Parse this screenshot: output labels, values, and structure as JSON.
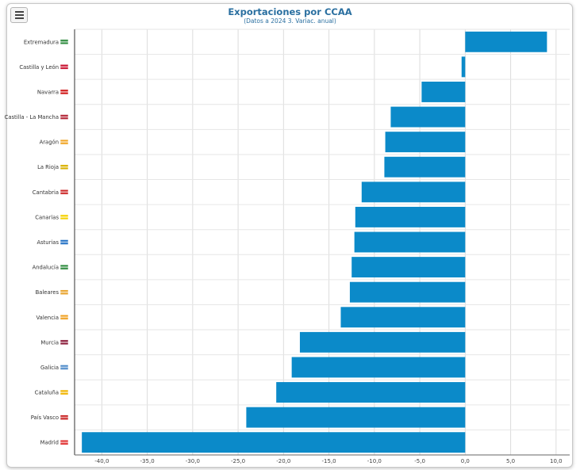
{
  "menu": {
    "icon": "hamburger-icon"
  },
  "chart_data": {
    "type": "bar",
    "orientation": "horizontal",
    "title": "Exportaciones por CCAA",
    "subtitle": "(Datos a 2024 3. Variac. anual)",
    "categories": [
      "Extremadura",
      "Castilla y León",
      "Navarra",
      "Castilla - La Mancha",
      "Aragón",
      "La Rioja",
      "Cantabria",
      "Canarias",
      "Asturias",
      "Andalucía",
      "Baleares",
      "Valencia",
      "Murcia",
      "Galicia",
      "Cataluña",
      "País Vasco",
      "Madrid"
    ],
    "values": [
      9.0,
      -0.4,
      -4.8,
      -8.2,
      -8.8,
      -8.9,
      -11.4,
      -12.1,
      -12.2,
      -12.5,
      -12.7,
      -13.7,
      -18.2,
      -19.1,
      -20.8,
      -24.1,
      -42.2
    ],
    "xlim": [
      -43,
      11.5
    ],
    "xticks": [
      -40,
      -35,
      -30,
      -25,
      -20,
      -15,
      -10,
      -5,
      0,
      5,
      10
    ],
    "xtick_labels": [
      "-40,0",
      "-35,0",
      "-30,0",
      "-25,0",
      "-20,0",
      "-15,0",
      "-10,0",
      "-5,0",
      "0,0",
      "5,0",
      "10,0"
    ],
    "grid": true,
    "bar_color": "#0b8ac9",
    "flag_colors": [
      "#2e8b3e",
      "#c8102e",
      "#d01818",
      "#b22234",
      "#f1a628",
      "#d9b100",
      "#cc2a2a",
      "#f5d100",
      "#1f6fc4",
      "#2e8b3e",
      "#e8a32c",
      "#f0a020",
      "#8b1c3a",
      "#4a88c8",
      "#f0b400",
      "#c81e1e",
      "#e03030"
    ]
  }
}
